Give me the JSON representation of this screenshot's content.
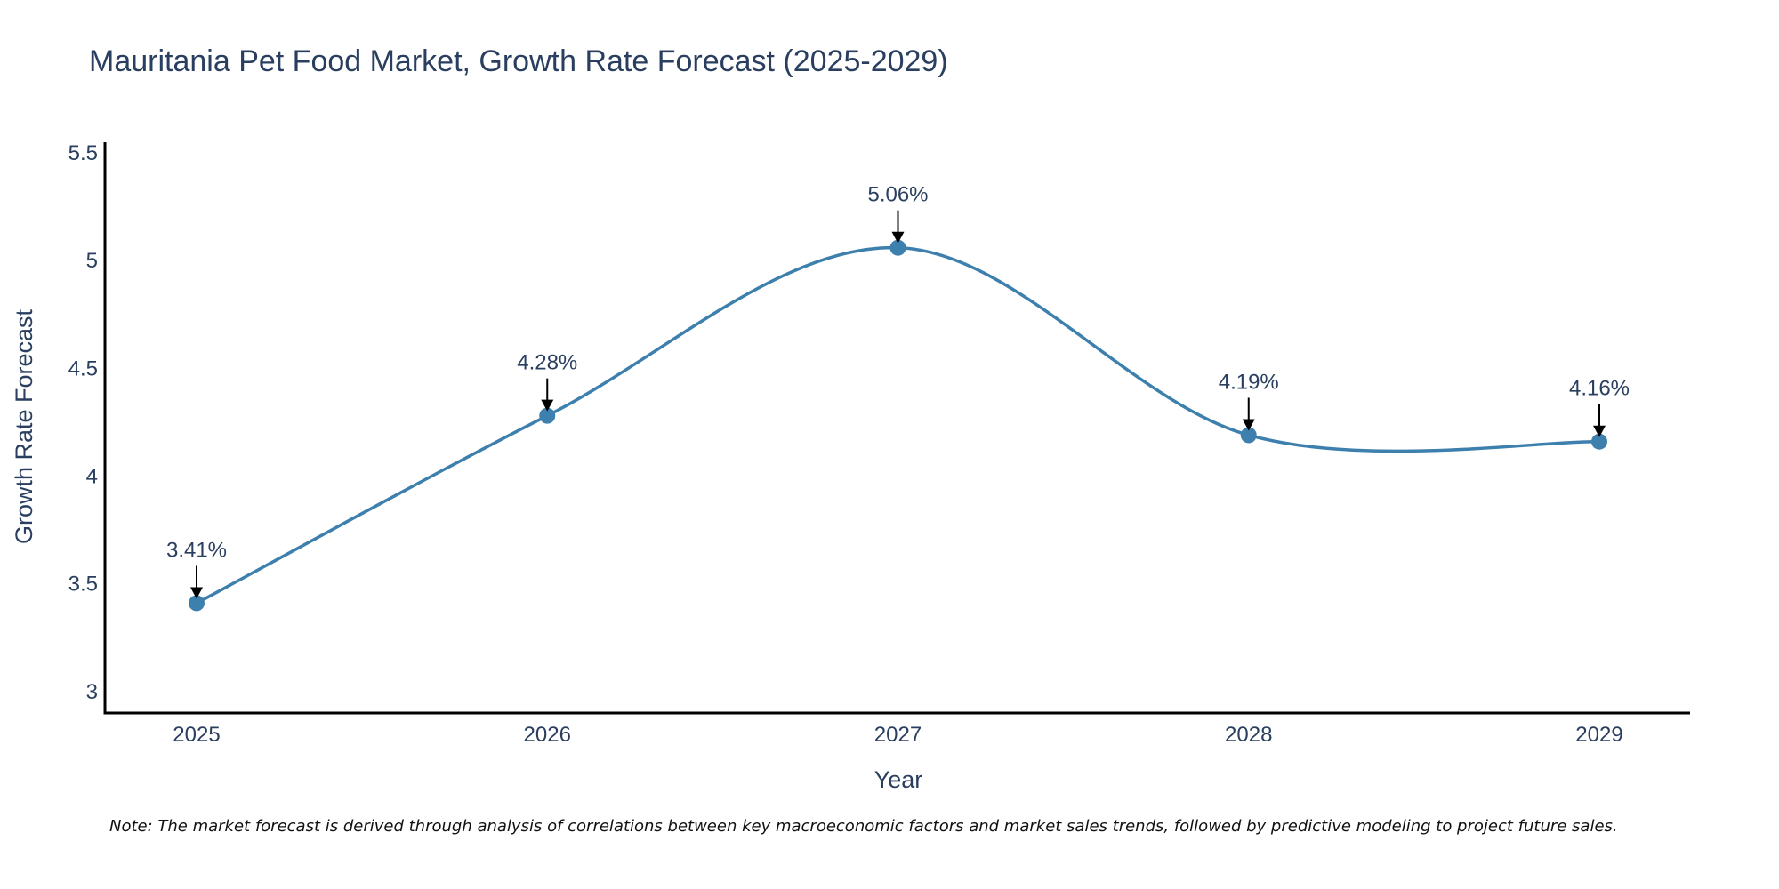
{
  "chart_data": {
    "type": "line",
    "title": "Mauritania Pet Food Market, Growth Rate Forecast (2025-2029)",
    "xlabel": "Year",
    "ylabel": "Growth Rate Forecast",
    "categories": [
      "2025",
      "2026",
      "2027",
      "2028",
      "2029"
    ],
    "values": [
      3.41,
      4.28,
      5.06,
      4.19,
      4.16
    ],
    "data_labels": [
      "3.41%",
      "4.28%",
      "5.06%",
      "4.19%",
      "4.16%"
    ],
    "ylim": [
      2.9,
      5.55
    ],
    "yticks": [
      3,
      3.5,
      4,
      4.5,
      5,
      5.5
    ],
    "ytick_labels": [
      "3",
      "3.5",
      "4",
      "4.5",
      "5",
      "5.5"
    ],
    "line_shape": "spline",
    "grid": false,
    "note": "Note: The market forecast is derived through analysis of correlations between key macroeconomic factors and market sales trends, followed by predictive modeling to project future sales."
  },
  "colors": {
    "line": "#3d7fad",
    "marker": "#3d7fad",
    "text": "#2a3f5f",
    "axis": "#000000",
    "arrow": "#000000"
  }
}
